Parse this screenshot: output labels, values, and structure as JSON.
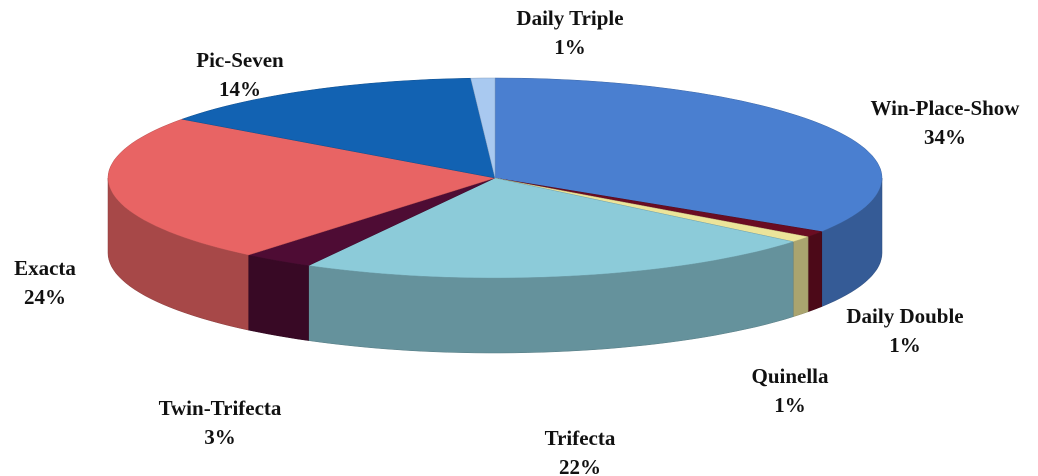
{
  "chart_data": {
    "type": "pie",
    "categories": [
      "Win-Place-Show",
      "Daily Double",
      "Quinella",
      "Trifecta",
      "Twin-Trifecta",
      "Exacta",
      "Pic-Seven",
      "Daily Triple"
    ],
    "values": [
      34,
      1,
      1,
      22,
      3,
      24,
      14,
      1
    ],
    "value_labels": [
      "34%",
      "1%",
      "1%",
      "22%",
      "3%",
      "24%",
      "14%",
      "1%"
    ],
    "colors": [
      "#4a7fd0",
      "#6a0c22",
      "#ece49a",
      "#8ccbd9",
      "#4e0c34",
      "#e86464",
      "#1262b2",
      "#a9c9f0"
    ]
  }
}
